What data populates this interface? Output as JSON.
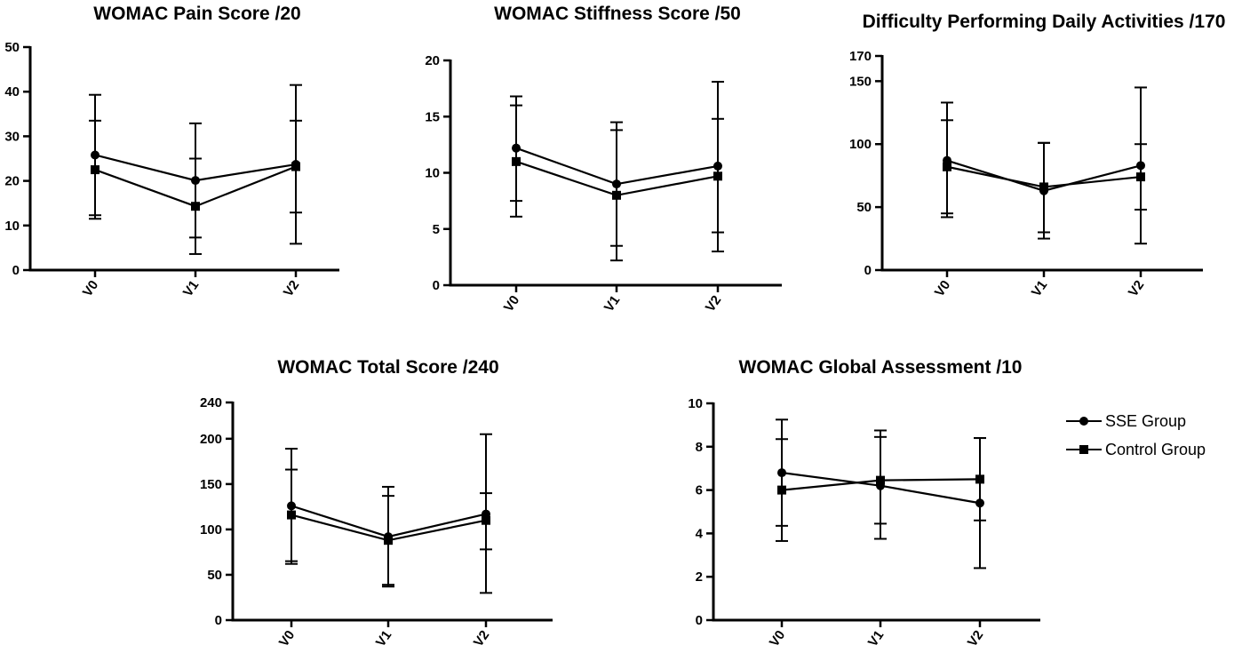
{
  "chart_data": [
    {
      "type": "line",
      "title": "WOMAC Pain Score /20",
      "categories": [
        "V0",
        "V1",
        "V2"
      ],
      "ylim": [
        0,
        50
      ],
      "yticks": [
        0,
        10,
        20,
        30,
        40,
        50
      ],
      "series": [
        {
          "name": "SSE Group",
          "marker": "circle",
          "values": [
            25.8,
            20.1,
            23.7
          ],
          "err_low": [
            12.3,
            7.3,
            5.9
          ],
          "err_high": [
            39.3,
            32.9,
            41.5
          ]
        },
        {
          "name": "Control Group",
          "marker": "square",
          "values": [
            22.5,
            14.3,
            23.2
          ],
          "err_low": [
            11.5,
            3.6,
            12.9
          ],
          "err_high": [
            33.5,
            25.0,
            33.5
          ]
        }
      ]
    },
    {
      "type": "line",
      "title": "WOMAC Stiffness Score /50",
      "categories": [
        "V0",
        "V1",
        "V2"
      ],
      "ylim": [
        0,
        20
      ],
      "yticks": [
        0,
        5,
        10,
        15,
        20
      ],
      "series": [
        {
          "name": "SSE Group",
          "marker": "circle",
          "values": [
            12.2,
            9.0,
            10.6
          ],
          "err_low": [
            7.5,
            3.5,
            3.0
          ],
          "err_high": [
            16.8,
            14.5,
            18.1
          ]
        },
        {
          "name": "Control Group",
          "marker": "square",
          "values": [
            11.0,
            8.0,
            9.7
          ],
          "err_low": [
            6.1,
            2.2,
            4.7
          ],
          "err_high": [
            16.0,
            13.8,
            14.8
          ]
        }
      ]
    },
    {
      "type": "line",
      "title": "Difficulty Performing Daily Activities /170",
      "categories": [
        "V0",
        "V1",
        "V2"
      ],
      "ylim": [
        0,
        170
      ],
      "yticks": [
        0,
        50,
        100,
        150,
        170
      ],
      "series": [
        {
          "name": "SSE Group",
          "marker": "circle",
          "values": [
            87,
            63,
            83
          ],
          "err_low": [
            42,
            25,
            21
          ],
          "err_high": [
            133,
            101,
            145
          ]
        },
        {
          "name": "Control Group",
          "marker": "square",
          "values": [
            82,
            66,
            74
          ],
          "err_low": [
            45,
            30,
            48
          ],
          "err_high": [
            119,
            101,
            100
          ]
        }
      ]
    },
    {
      "type": "line",
      "title": "WOMAC Total Score /240",
      "categories": [
        "V0",
        "V1",
        "V2"
      ],
      "ylim": [
        0,
        240
      ],
      "yticks": [
        0,
        50,
        100,
        150,
        200,
        240
      ],
      "series": [
        {
          "name": "SSE Group",
          "marker": "circle",
          "values": [
            126,
            92,
            117
          ],
          "err_low": [
            62,
            37,
            30
          ],
          "err_high": [
            189,
            147,
            205
          ]
        },
        {
          "name": "Control Group",
          "marker": "square",
          "values": [
            116,
            88,
            110
          ],
          "err_low": [
            65,
            39,
            78
          ],
          "err_high": [
            166,
            137,
            140
          ]
        }
      ]
    },
    {
      "type": "line",
      "title": "WOMAC Global Assessment /10",
      "categories": [
        "V0",
        "V1",
        "V2"
      ],
      "ylim": [
        0,
        10
      ],
      "yticks": [
        0,
        2,
        4,
        6,
        8,
        10
      ],
      "series": [
        {
          "name": "SSE Group",
          "marker": "circle",
          "values": [
            6.8,
            6.2,
            5.4
          ],
          "err_low": [
            4.35,
            3.75,
            2.4
          ],
          "err_high": [
            9.25,
            8.75,
            8.4
          ]
        },
        {
          "name": "Control Group",
          "marker": "square",
          "values": [
            6.0,
            6.45,
            6.5
          ],
          "err_low": [
            3.65,
            4.45,
            4.6
          ],
          "err_high": [
            8.35,
            8.45,
            8.4
          ]
        }
      ]
    }
  ],
  "legend": {
    "items": [
      {
        "name": "SSE Group",
        "marker": "circle"
      },
      {
        "name": "Control Group",
        "marker": "square"
      }
    ]
  }
}
